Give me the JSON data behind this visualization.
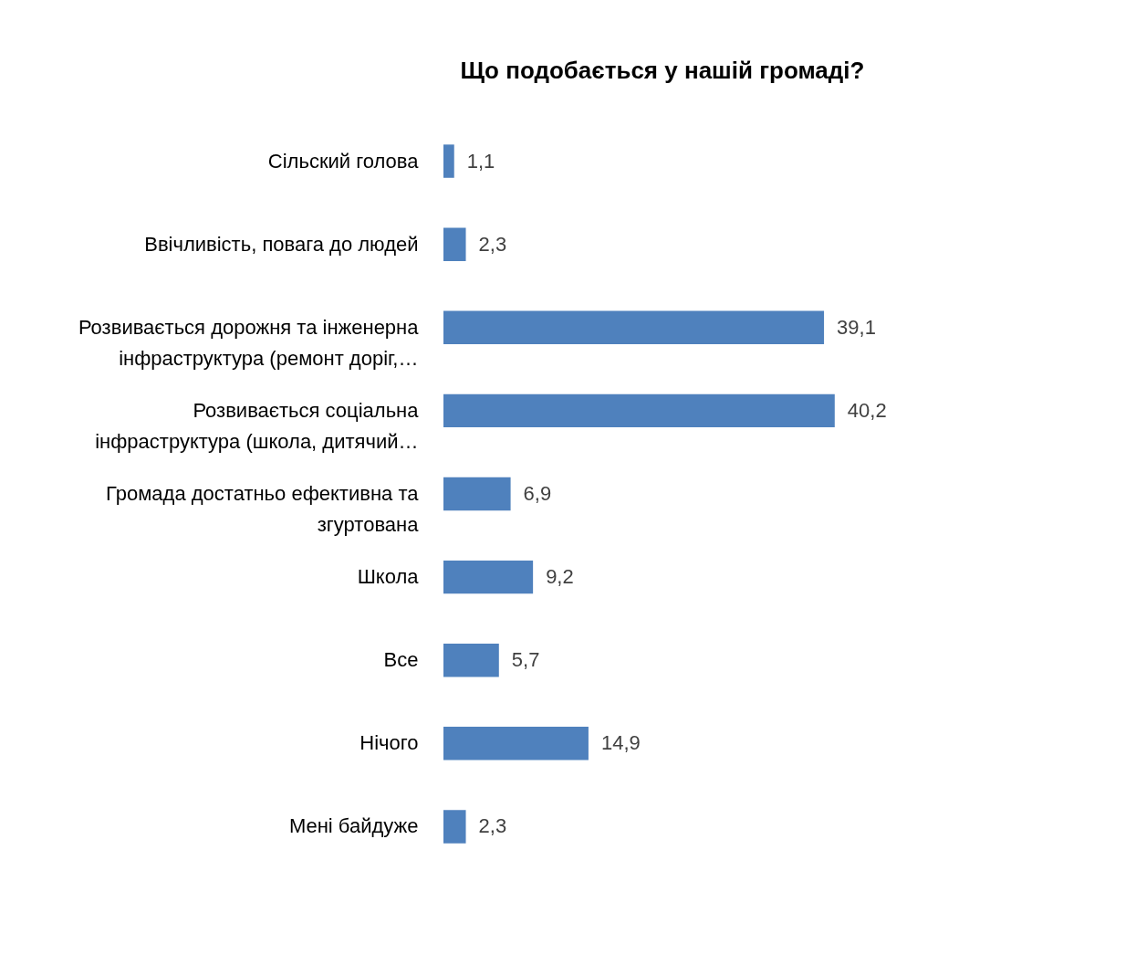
{
  "chart_data": {
    "type": "bar",
    "orientation": "horizontal",
    "title": "Що подобається у нашій громаді?",
    "categories": [
      "Сільский голова",
      "Ввічливість, повага до людей",
      "Розвивається дорожня та інженерна інфраструктура (ремонт доріг,…",
      "Розвивається соціальна інфраструктура (школа, дитячий…",
      "Громада достатньо ефективна та згуртована",
      "Школа",
      "Все",
      "Нічого",
      "Мені байдуже"
    ],
    "values": [
      1.1,
      2.3,
      39.1,
      40.2,
      6.9,
      9.2,
      5.7,
      14.9,
      2.3
    ],
    "value_labels": [
      "1,1",
      "2,3",
      "39,1",
      "40,2",
      "6,9",
      "9,2",
      "5,7",
      "14,9",
      "2,3"
    ],
    "color": "#4f81bd",
    "grid": false
  }
}
